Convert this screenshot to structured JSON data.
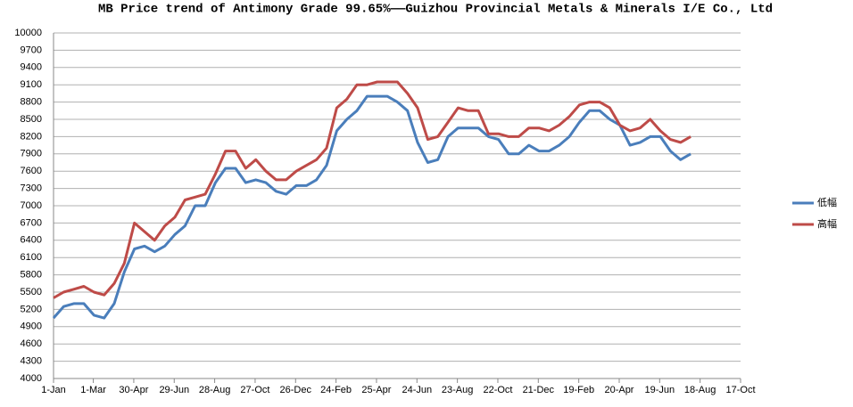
{
  "chart_data": {
    "type": "line",
    "title": "MB Price trend of Antimony Grade 99.65%——Guizhou Provincial Metals & Minerals I/E Co., Ltd",
    "x": [
      0,
      15,
      30,
      45,
      60,
      75,
      90,
      105,
      120,
      135,
      150,
      165,
      180,
      195,
      210,
      225,
      240,
      255,
      270,
      285,
      300,
      315,
      330,
      345,
      360,
      375,
      390,
      405,
      420,
      435,
      450,
      465,
      480,
      495,
      510,
      525,
      540,
      555,
      570,
      585,
      600,
      615,
      630,
      645,
      660,
      675,
      690,
      705,
      720,
      735,
      750,
      765,
      780,
      795,
      810,
      825,
      840,
      855,
      870,
      885,
      900,
      915,
      930,
      945
    ],
    "series": [
      {
        "name": "低幅",
        "color": "#4a7ebb",
        "values": [
          5050,
          5250,
          5300,
          5300,
          5100,
          5050,
          5300,
          5850,
          6250,
          6300,
          6200,
          6300,
          6500,
          6650,
          7000,
          7000,
          7400,
          7650,
          7650,
          7400,
          7450,
          7400,
          7250,
          7200,
          7350,
          7350,
          7450,
          7700,
          8300,
          8500,
          8650,
          8900,
          8900,
          8900,
          8800,
          8650,
          8100,
          7750,
          7800,
          8200,
          8350,
          8350,
          8350,
          8200,
          8150,
          7900,
          7900,
          8050,
          7950,
          7950,
          8050,
          8200,
          8450,
          8650,
          8650,
          8500,
          8400,
          8050,
          8100,
          8200,
          8200,
          7950,
          7800,
          7900
        ]
      },
      {
        "name": "高幅",
        "color": "#be4b48",
        "values": [
          5400,
          5500,
          5550,
          5600,
          5500,
          5450,
          5650,
          6000,
          6700,
          6550,
          6400,
          6650,
          6800,
          7100,
          7150,
          7200,
          7550,
          7950,
          7950,
          7650,
          7800,
          7600,
          7450,
          7450,
          7600,
          7700,
          7800,
          8000,
          8700,
          8850,
          9100,
          9100,
          9150,
          9150,
          9150,
          8950,
          8700,
          8150,
          8200,
          8450,
          8700,
          8650,
          8650,
          8250,
          8250,
          8200,
          8200,
          8350,
          8350,
          8300,
          8400,
          8550,
          8750,
          8800,
          8800,
          8700,
          8400,
          8300,
          8350,
          8500,
          8300,
          8150,
          8100,
          8200
        ]
      }
    ],
    "xlim": [
      0,
      1019
    ],
    "xticks": [
      {
        "value": 0,
        "label": "1-Jan"
      },
      {
        "value": 59,
        "label": "1-Mar"
      },
      {
        "value": 119,
        "label": "30-Apr"
      },
      {
        "value": 179,
        "label": "29-Jun"
      },
      {
        "value": 239,
        "label": "28-Aug"
      },
      {
        "value": 299,
        "label": "27-Oct"
      },
      {
        "value": 359,
        "label": "26-Dec"
      },
      {
        "value": 419,
        "label": "24-Feb"
      },
      {
        "value": 479,
        "label": "25-Apr"
      },
      {
        "value": 539,
        "label": "24-Jun"
      },
      {
        "value": 599,
        "label": "23-Aug"
      },
      {
        "value": 659,
        "label": "22-Oct"
      },
      {
        "value": 719,
        "label": "21-Dec"
      },
      {
        "value": 779,
        "label": "19-Feb"
      },
      {
        "value": 839,
        "label": "20-Apr"
      },
      {
        "value": 899,
        "label": "19-Jun"
      },
      {
        "value": 959,
        "label": "18-Aug"
      },
      {
        "value": 1019,
        "label": "17-Oct"
      }
    ],
    "ylim": [
      4000,
      10000
    ],
    "yticks": [
      4000,
      4300,
      4600,
      4900,
      5200,
      5500,
      5800,
      6100,
      6400,
      6700,
      7000,
      7300,
      7600,
      7900,
      8200,
      8500,
      8800,
      9100,
      9400,
      9700,
      10000
    ],
    "grid": true,
    "legend": "right"
  }
}
